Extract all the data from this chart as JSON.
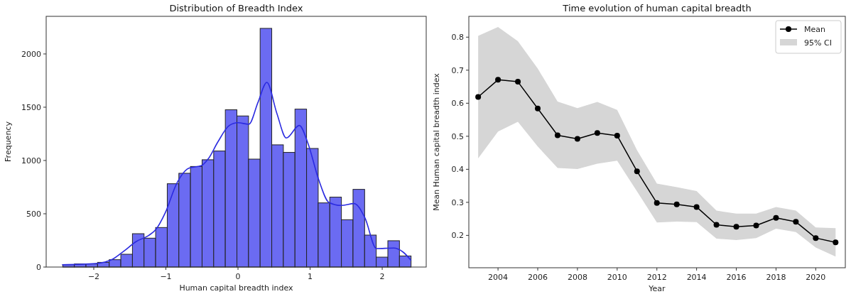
{
  "chart_data": [
    {
      "type": "histogram",
      "title": "Distribution of Breadth Index",
      "xlabel": "Human capital breadth index",
      "ylabel": "Frequency",
      "bins": [
        -2.43,
        -2.269,
        -2.108,
        -1.947,
        -1.786,
        -1.625,
        -1.464,
        -1.303,
        -1.142,
        -0.981,
        -0.82,
        -0.659,
        -0.498,
        -0.337,
        -0.176,
        -0.015,
        0.146,
        0.307,
        0.468,
        0.629,
        0.79,
        0.951,
        1.112,
        1.273,
        1.434,
        1.595,
        1.756,
        1.917,
        2.078,
        2.239,
        2.4
      ],
      "values": [
        22,
        29,
        29,
        44,
        69,
        120,
        313,
        271,
        371,
        782,
        880,
        944,
        1007,
        1089,
        1476,
        1418,
        1013,
        2240,
        1147,
        1076,
        1482,
        1113,
        602,
        656,
        444,
        729,
        300,
        93,
        247,
        104
      ],
      "color": "#6b6bf2",
      "series": [
        {
          "type": "line",
          "color": "#2b2be0",
          "x": [
            -2.44,
            -1.97,
            -1.74,
            -1.58,
            -1.41,
            -1.24,
            -1.14,
            -1.01,
            -0.85,
            -0.68,
            -0.51,
            -0.41,
            -0.28,
            -0.12,
            0,
            0.15,
            0.28,
            0.4,
            0.54,
            0.67,
            0.85,
            0.97,
            1.12,
            1.26,
            1.43,
            1.61,
            1.76,
            1.92,
            2.16,
            2.29,
            2.4
          ],
          "values": [
            22,
            33,
            73,
            151,
            240,
            296,
            351,
            507,
            784,
            929,
            951,
            1018,
            1173,
            1329,
            1355,
            1340,
            1551,
            1733,
            1440,
            1211,
            1329,
            1162,
            818,
            607,
            578,
            596,
            462,
            173,
            178,
            140,
            62
          ]
        }
      ],
      "xlim": [
        -2.66,
        2.61
      ],
      "xticks": [
        {
          "value": -2,
          "label": "−2"
        },
        {
          "value": -1,
          "label": "−1"
        },
        0,
        1,
        2
      ],
      "ylim": [
        0,
        2353
      ],
      "yticks": [
        0,
        500,
        1000,
        1500,
        2000
      ]
    },
    {
      "type": "line",
      "title": "Time evolution of human capital breadth",
      "xlabel": "Year",
      "ylabel": "Mean Human capital breadth index",
      "x": [
        2003,
        2004,
        2005,
        2006,
        2007,
        2008,
        2009,
        2010,
        2011,
        2012,
        2013,
        2014,
        2015,
        2016,
        2017,
        2018,
        2019,
        2020,
        2021
      ],
      "series": [
        {
          "name": "Mean",
          "color": "#000000",
          "marker": "circle",
          "values": [
            0.619,
            0.671,
            0.665,
            0.584,
            0.503,
            0.492,
            0.51,
            0.502,
            0.394,
            0.298,
            0.294,
            0.286,
            0.232,
            0.226,
            0.23,
            0.253,
            0.241,
            0.192,
            0.179
          ],
          "upper": [
            0.804,
            0.831,
            0.788,
            0.705,
            0.605,
            0.585,
            0.604,
            0.58,
            0.458,
            0.357,
            0.346,
            0.334,
            0.275,
            0.266,
            0.266,
            0.286,
            0.275,
            0.224,
            0.222
          ],
          "lower": [
            0.433,
            0.514,
            0.544,
            0.469,
            0.404,
            0.401,
            0.417,
            0.426,
            0.333,
            0.239,
            0.242,
            0.24,
            0.19,
            0.186,
            0.192,
            0.22,
            0.21,
            0.163,
            0.136
          ]
        }
      ],
      "annotations": [
        "95% CI"
      ],
      "legend": "top right",
      "xlim": [
        2002.53,
        2021.49
      ],
      "xticks": [
        2004,
        2006,
        2008,
        2010,
        2012,
        2014,
        2016,
        2018,
        2020
      ],
      "ylim": [
        0.102,
        0.863
      ],
      "yticks": [
        0.2,
        0.3,
        0.4,
        0.5,
        0.6,
        0.7,
        0.8
      ]
    }
  ]
}
